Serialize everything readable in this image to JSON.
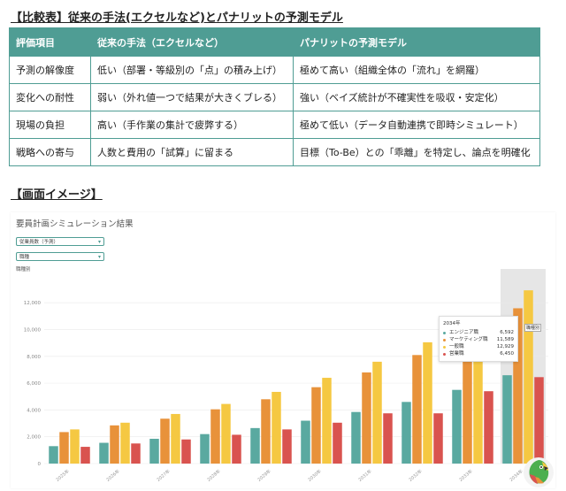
{
  "headings": {
    "comparison": "【比較表】従来の手法(エクセルなど)とパナリットの予測モデル",
    "screen": "【画面イメージ】"
  },
  "table": {
    "headers": [
      "評価項目",
      "従来の手法（エクセルなど）",
      "パナリットの予測モデル"
    ],
    "rows": [
      [
        "予測の解像度",
        "低い（部署・等級別の「点」の積み上げ）",
        "極めて高い（組織全体の「流れ」を網羅）"
      ],
      [
        "変化への耐性",
        "弱い（外れ値一つで結果が大きくブレる）",
        "強い（ベイズ統計が不確実性を吸収・安定化）"
      ],
      [
        "現場の負担",
        "高い（手作業の集計で疲弊する）",
        "極めて低い（データ自動連携で即時シミュレート）"
      ],
      [
        "戦略への寄与",
        "人数と費用の「試算」に留まる",
        "目標（To-Be）との「乖離」を特定し、論点を明確化"
      ]
    ]
  },
  "app": {
    "title": "要員計画シミュレーション結果",
    "dropdown1": "従業員数（予測）",
    "dropdown2": "職種",
    "y_axis_label": "職種別",
    "tooltip": {
      "year": "2034年",
      "items": [
        {
          "label": "エンジニア職",
          "value": "6,592",
          "color": "#5aa9a0"
        },
        {
          "label": "マーケティング職",
          "value": "11,589",
          "color": "#e8923a"
        },
        {
          "label": "一般職",
          "value": "12,929",
          "color": "#f5c842"
        },
        {
          "label": "営業職",
          "value": "6,450",
          "color": "#d9534f"
        }
      ]
    },
    "hover_label": "職種別"
  },
  "chart_data": {
    "type": "bar",
    "categories": [
      "2025年",
      "2026年",
      "2027年",
      "2028年",
      "2029年",
      "2030年",
      "2031年",
      "2032年",
      "2033年",
      "2034年"
    ],
    "series": [
      {
        "name": "エンジニア職",
        "color": "#5aa9a0",
        "values": [
          1300,
          1550,
          1850,
          2200,
          2650,
          3200,
          3850,
          4600,
          5500,
          6592
        ]
      },
      {
        "name": "マーケティング職",
        "color": "#e8923a",
        "values": [
          2350,
          2850,
          3350,
          4050,
          4800,
          5700,
          6800,
          8100,
          9700,
          11589
        ]
      },
      {
        "name": "一般職",
        "color": "#f5c842",
        "values": [
          2550,
          3050,
          3700,
          4450,
          5350,
          6400,
          7600,
          9050,
          10800,
          12929
        ]
      },
      {
        "name": "営業職",
        "color": "#d9534f",
        "values": [
          1250,
          1500,
          1800,
          2150,
          2550,
          3050,
          3750,
          3750,
          5400,
          6450
        ]
      }
    ],
    "yticks": [
      0,
      2000,
      4000,
      6000,
      8000,
      10000,
      12000
    ],
    "ylim": [
      0,
      13600
    ],
    "highlight_index": 9,
    "grid": true
  }
}
